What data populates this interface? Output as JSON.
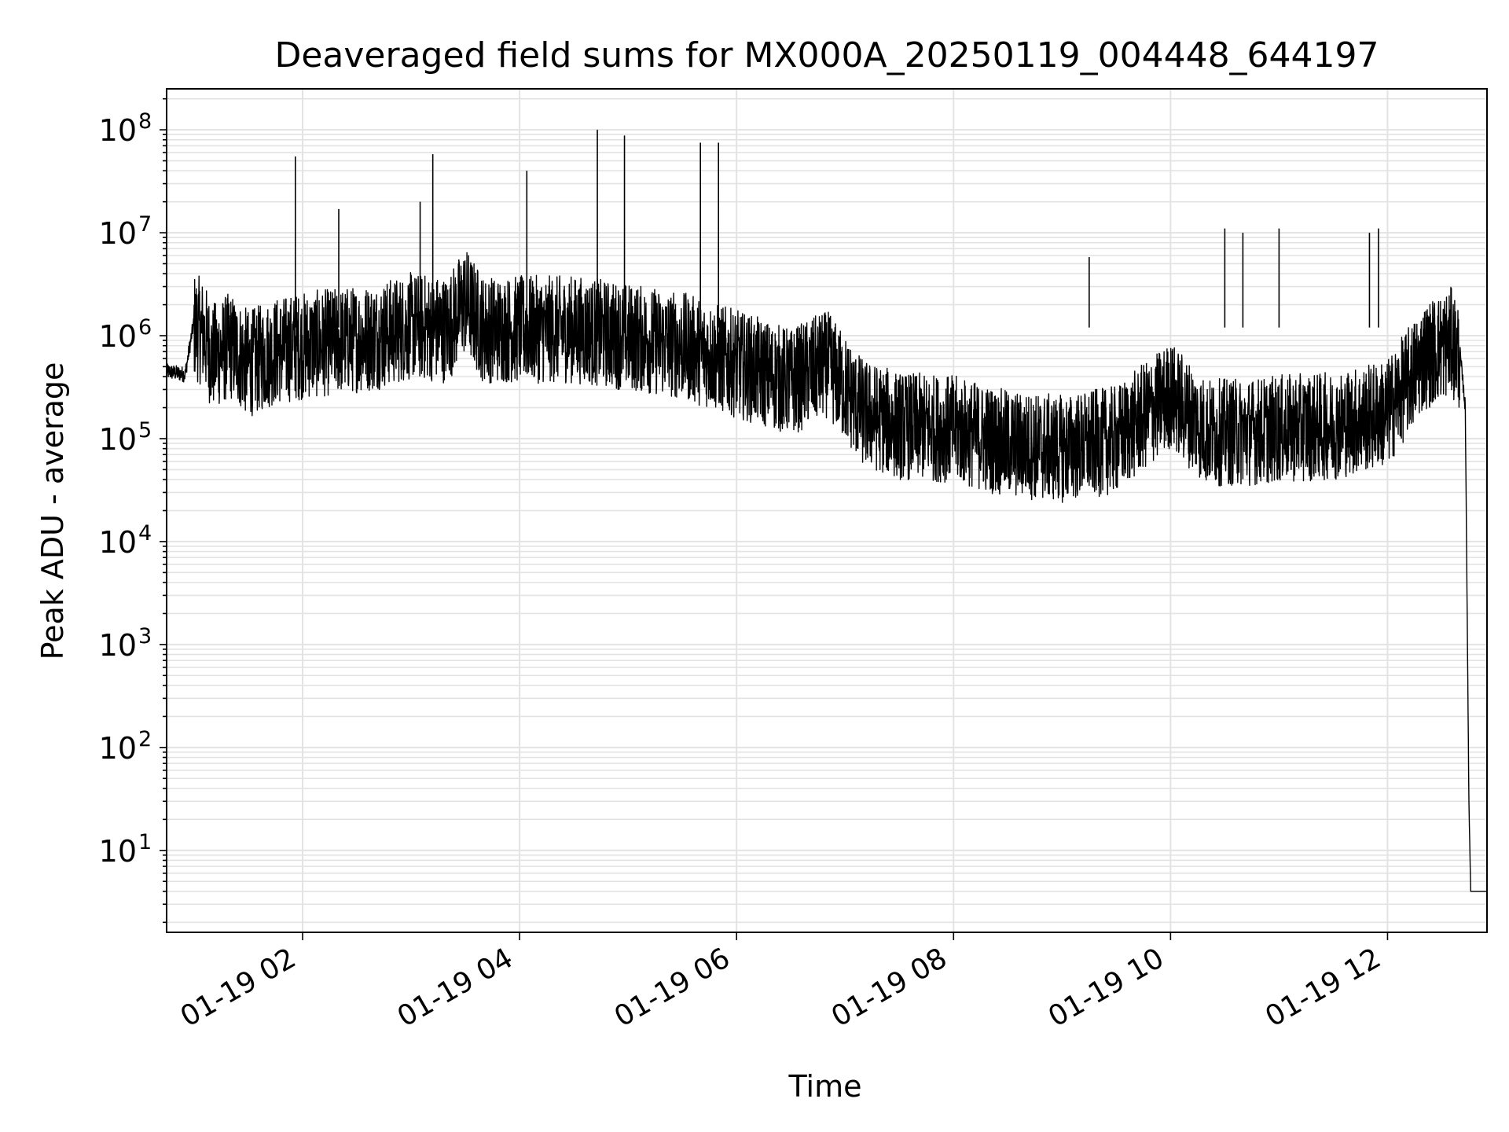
{
  "chart_data": {
    "type": "line",
    "title": "Deaveraged field sums for MX000A_20250119_004448_644197",
    "xlabel": "Time",
    "ylabel": "Peak ADU - average",
    "yscale": "log",
    "ylim": [
      1.6,
      250000000
    ],
    "xlim": [
      "2025-01-19 00:44:48",
      "2025-01-19 12:55:00"
    ],
    "xticks": [
      {
        "time": "2025-01-19 02:00",
        "label": "01-19 02"
      },
      {
        "time": "2025-01-19 04:00",
        "label": "01-19 04"
      },
      {
        "time": "2025-01-19 06:00",
        "label": "01-19 06"
      },
      {
        "time": "2025-01-19 08:00",
        "label": "01-19 08"
      },
      {
        "time": "2025-01-19 10:00",
        "label": "01-19 10"
      },
      {
        "time": "2025-01-19 12:00",
        "label": "01-19 12"
      }
    ],
    "yticks": [
      {
        "value": 10,
        "base": "10",
        "exp": "1"
      },
      {
        "value": 100,
        "base": "10",
        "exp": "2"
      },
      {
        "value": 1000,
        "base": "10",
        "exp": "3"
      },
      {
        "value": 10000,
        "base": "10",
        "exp": "4"
      },
      {
        "value": 100000,
        "base": "10",
        "exp": "5"
      },
      {
        "value": 1000000,
        "base": "10",
        "exp": "6"
      },
      {
        "value": 10000000,
        "base": "10",
        "exp": "7"
      },
      {
        "value": 100000000,
        "base": "10",
        "exp": "8"
      }
    ],
    "grid": true,
    "series": [
      {
        "color": "#000000",
        "x": [
          "2025-01-19 00:44:48",
          "2025-01-19 00:55",
          "2025-01-19 01:00",
          "2025-01-19 01:05",
          "2025-01-19 01:10",
          "2025-01-19 01:20",
          "2025-01-19 01:30",
          "2025-01-19 01:45",
          "2025-01-19 02:00",
          "2025-01-19 02:20",
          "2025-01-19 02:40",
          "2025-01-19 03:00",
          "2025-01-19 03:20",
          "2025-01-19 03:30",
          "2025-01-19 03:40",
          "2025-01-19 04:00",
          "2025-01-19 04:30",
          "2025-01-19 05:00",
          "2025-01-19 05:30",
          "2025-01-19 06:00",
          "2025-01-19 06:30",
          "2025-01-19 06:50",
          "2025-01-19 07:10",
          "2025-01-19 07:30",
          "2025-01-19 08:00",
          "2025-01-19 08:30",
          "2025-01-19 09:00",
          "2025-01-19 09:30",
          "2025-01-19 10:00",
          "2025-01-19 10:20",
          "2025-01-19 10:40",
          "2025-01-19 11:00",
          "2025-01-19 11:30",
          "2025-01-19 12:00",
          "2025-01-19 12:20",
          "2025-01-19 12:35",
          "2025-01-19 12:40",
          "2025-01-19 12:43",
          "2025-01-19 12:45",
          "2025-01-19 12:46",
          "2025-01-19 12:48",
          "2025-01-19 12:55"
        ],
        "y": [
          450000,
          420000,
          1400000,
          1200000,
          700000,
          900000,
          600000,
          800000,
          900000,
          1000000,
          1100000,
          1400000,
          1300000,
          2500000,
          1300000,
          1300000,
          1300000,
          1100000,
          900000,
          600000,
          400000,
          600000,
          200000,
          150000,
          140000,
          100000,
          90000,
          110000,
          300000,
          130000,
          130000,
          140000,
          150000,
          200000,
          700000,
          1000000,
          700000,
          200000,
          30,
          4,
          4,
          4
        ]
      }
    ],
    "spikes": [
      {
        "time": "2025-01-19 01:56",
        "y": 55000000
      },
      {
        "time": "2025-01-19 02:20",
        "y": 17000000
      },
      {
        "time": "2025-01-19 03:05",
        "y": 20000000
      },
      {
        "time": "2025-01-19 03:12",
        "y": 58000000
      },
      {
        "time": "2025-01-19 04:04",
        "y": 40000000
      },
      {
        "time": "2025-01-19 04:43",
        "y": 100000000
      },
      {
        "time": "2025-01-19 04:58",
        "y": 88000000
      },
      {
        "time": "2025-01-19 05:40",
        "y": 75000000
      },
      {
        "time": "2025-01-19 05:50",
        "y": 75000000
      },
      {
        "time": "2025-01-19 09:15",
        "y": 5800000
      },
      {
        "time": "2025-01-19 10:30",
        "y": 11000000
      },
      {
        "time": "2025-01-19 10:40",
        "y": 10000000
      },
      {
        "time": "2025-01-19 11:00",
        "y": 11000000
      },
      {
        "time": "2025-01-19 11:50",
        "y": 10000000
      },
      {
        "time": "2025-01-19 11:55",
        "y": 11000000
      }
    ]
  }
}
